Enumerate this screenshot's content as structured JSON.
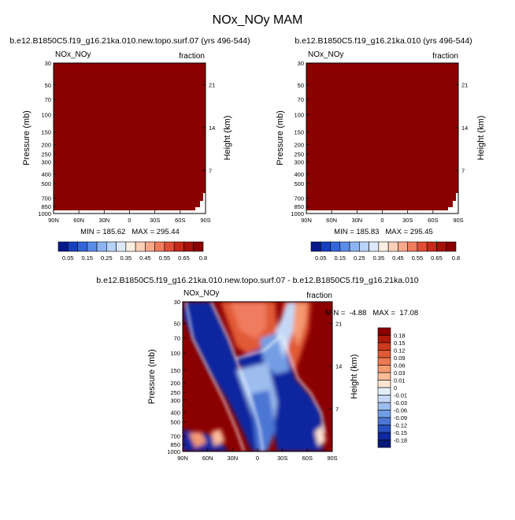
{
  "page_title": "NOx_NOy MAM",
  "colors": {
    "fill_dark_red": "#8b0000",
    "white": "#ffffff"
  },
  "chart_data": [
    {
      "type": "heatmap",
      "title": "b.e12.B1850C5.f19_g16.21ka.010.new.topo.surf.07 (yrs 496-544)",
      "left_label": "NOx_NOy",
      "right_label": "fraction",
      "ylabel": "Pressure (mb)",
      "ylabel_right": "Height (km)",
      "x_ticks": [
        "90N",
        "60N",
        "30N",
        "0",
        "30S",
        "60S",
        "90S"
      ],
      "y_ticks": [
        "30",
        "50",
        "70",
        "100",
        "150",
        "200",
        "250",
        "300",
        "400",
        "500",
        "700",
        "850",
        "1000"
      ],
      "y_ticks_right": [
        "21",
        "14",
        "7"
      ],
      "stats": "MIN = 185.62   MAX = 295.44",
      "colorbar": {
        "labels": [
          "0.05",
          "0.15",
          "0.25",
          "0.35",
          "0.45",
          "0.55",
          "0.65",
          "0.8"
        ],
        "colors": [
          "#08198a",
          "#1640c0",
          "#3266d8",
          "#5a8ce8",
          "#8cb4f2",
          "#b8d2f8",
          "#dde9fb",
          "#fdeee2",
          "#fcd0b8",
          "#f8a98a",
          "#f07c5e",
          "#e04d35",
          "#c6281a",
          "#a51008",
          "#8b0000"
        ]
      }
    },
    {
      "type": "heatmap",
      "title": "b.e12.B1850C5.f19_g16.21ka.010 (yrs 496-544)",
      "left_label": "NOx_NOy",
      "right_label": "fraction",
      "ylabel": "Pressure (mb)",
      "ylabel_right": "Height (km)",
      "x_ticks": [
        "90N",
        "60N",
        "30N",
        "0",
        "30S",
        "60S",
        "90S"
      ],
      "y_ticks": [
        "30",
        "50",
        "70",
        "100",
        "150",
        "200",
        "250",
        "300",
        "400",
        "500",
        "700",
        "850",
        "1000"
      ],
      "y_ticks_right": [
        "21",
        "14",
        "7"
      ],
      "stats": "MIN = 185.83   MAX = 295.45",
      "colorbar": {
        "labels": [
          "0.05",
          "0.15",
          "0.25",
          "0.35",
          "0.45",
          "0.55",
          "0.65",
          "0.8"
        ],
        "colors": [
          "#08198a",
          "#1640c0",
          "#3266d8",
          "#5a8ce8",
          "#8cb4f2",
          "#b8d2f8",
          "#dde9fb",
          "#fdeee2",
          "#fcd0b8",
          "#f8a98a",
          "#f07c5e",
          "#e04d35",
          "#c6281a",
          "#a51008",
          "#8b0000"
        ]
      }
    },
    {
      "type": "heatmap",
      "title": "b.e12.B1850C5.f19_g16.21ka.010.new.topo.surf.07 - b.e12.B1850C5.f19_g16.21ka.010",
      "left_label": "NOx_NOy",
      "right_label": "fraction",
      "ylabel": "Pressure (mb)",
      "ylabel_right": "Height (km)",
      "x_ticks": [
        "90N",
        "60N",
        "30N",
        "0",
        "30S",
        "60S",
        "90S"
      ],
      "y_ticks": [
        "30",
        "50",
        "70",
        "100",
        "150",
        "200",
        "250",
        "300",
        "400",
        "500",
        "700",
        "850",
        "1000"
      ],
      "y_ticks_right": [
        "21",
        "14",
        "7"
      ],
      "stats": "MIN =  -4.88   MAX =  17.08",
      "colorbar": {
        "labels": [
          "0.18",
          "0.15",
          "0.12",
          "0.09",
          "0.06",
          "0.03",
          "0.01",
          "0",
          "-0.01",
          "-0.03",
          "-0.06",
          "-0.09",
          "-0.12",
          "-0.15",
          "-0.18"
        ],
        "colors": [
          "#8b0000",
          "#b01a0a",
          "#cc3a1e",
          "#e05a36",
          "#ec7a52",
          "#f59a72",
          "#fabb98",
          "#fde4d2",
          "#e4eefa",
          "#c4d8f5",
          "#9dbdef",
          "#739de4",
          "#4b76d4",
          "#2a4fbe",
          "#1028a0",
          "#061878"
        ]
      }
    }
  ]
}
